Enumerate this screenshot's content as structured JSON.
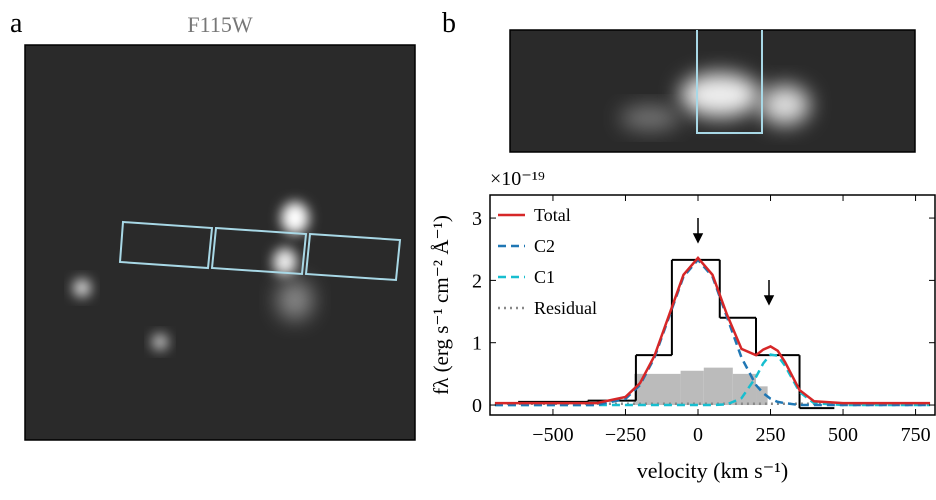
{
  "panels": {
    "a": {
      "label": "a",
      "title": "F115W"
    },
    "b": {
      "label": "b"
    }
  },
  "chart_data": {
    "type": "line",
    "axis_multiplier": "×10⁻¹⁹",
    "ylabel": "fλ (erg s⁻¹ cm⁻² Å⁻¹)",
    "xlabel": "velocity (km s⁻¹)",
    "xlim": [
      -717,
      817
    ],
    "ylim": [
      -0.16,
      3.37
    ],
    "xticks": [
      {
        "value": -500,
        "label": "−500"
      },
      {
        "value": -250,
        "label": "−250"
      },
      0,
      250,
      500,
      750
    ],
    "yticks": [
      0,
      1,
      2,
      3
    ],
    "legend": "upper left",
    "steps": {
      "edges": [
        -620,
        -380,
        -214,
        -90,
        75,
        200,
        350,
        470
      ],
      "values": [
        0.05,
        0.07,
        0.8,
        2.33,
        1.4,
        0.8,
        -0.05
      ],
      "color": "#000000"
    },
    "error_fill": {
      "edges": [
        -220,
        -60,
        20,
        120,
        200,
        240
      ],
      "values": [
        0.5,
        0.55,
        0.6,
        0.5,
        0.3
      ],
      "color": "#bbbbbb"
    },
    "x": [
      -700,
      -500,
      -350,
      -250,
      -200,
      -150,
      -100,
      -50,
      0,
      50,
      100,
      150,
      200,
      225,
      250,
      275,
      300,
      350,
      400,
      500,
      650,
      800
    ],
    "series": [
      {
        "name": "Total",
        "color": "#d62728",
        "style": "solid",
        "values": [
          0.03,
          0.03,
          0.03,
          0.13,
          0.35,
          0.79,
          1.44,
          2.09,
          2.36,
          2.09,
          1.45,
          0.9,
          0.8,
          0.89,
          0.94,
          0.87,
          0.69,
          0.24,
          0.06,
          0.03,
          0.03,
          0.03
        ]
      },
      {
        "name": "C2",
        "color": "#1f77b4",
        "style": "dashed",
        "values": [
          0,
          0,
          0,
          0.1,
          0.32,
          0.76,
          1.41,
          2.06,
          2.33,
          2.06,
          1.41,
          0.76,
          0.32,
          0.19,
          0.1,
          0.05,
          0.03,
          0,
          0,
          0,
          0,
          0
        ]
      },
      {
        "name": "C1",
        "color": "#17becf",
        "style": "dashed",
        "values": [
          0,
          0,
          0,
          0,
          0,
          0,
          0,
          0,
          0,
          0,
          0.01,
          0.11,
          0.45,
          0.67,
          0.81,
          0.79,
          0.63,
          0.21,
          0.03,
          0,
          0,
          0
        ]
      },
      {
        "name": "Residual",
        "color": "#888888",
        "style": "dotted",
        "values": [
          0.02,
          0.02,
          0.02,
          0.02,
          0.02,
          0.02,
          0.02,
          0.02,
          0.02,
          0.02,
          0.02,
          0.02,
          0.02,
          0.02,
          0.02,
          0.02,
          0.02,
          0.02,
          0.02,
          0.02,
          0.02,
          0.02
        ]
      }
    ]
  }
}
